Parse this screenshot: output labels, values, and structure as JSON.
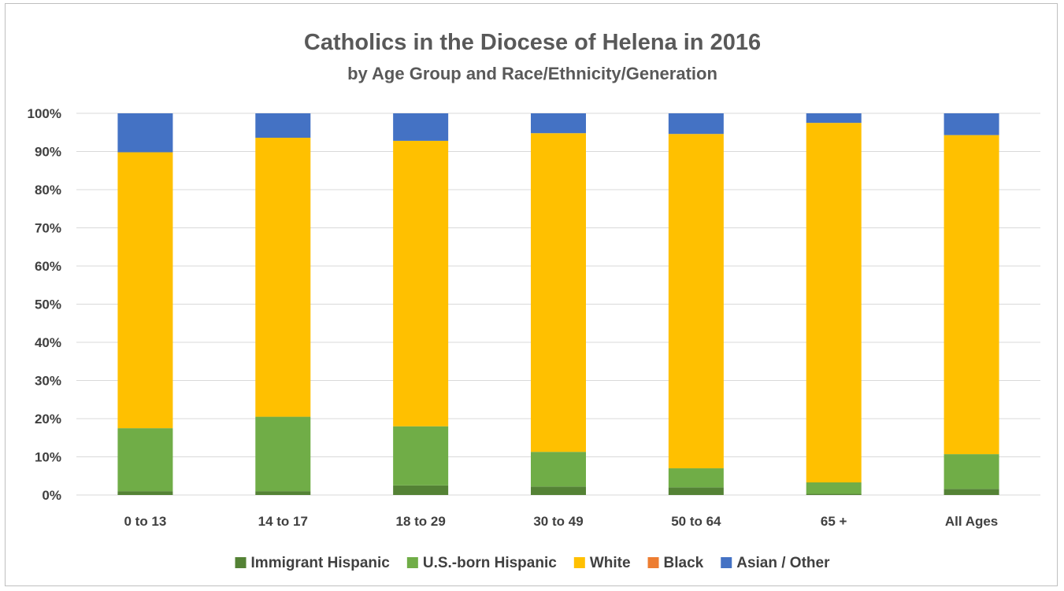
{
  "chart_data": {
    "type": "bar",
    "stacked": true,
    "title": "Catholics in the Diocese of Helena in 2016",
    "subtitle": "by Age Group and Race/Ethnicity/Generation",
    "categories": [
      "0 to 13",
      "14 to 17",
      "18 to 29",
      "30 to 49",
      "50 to 64",
      "65 +",
      "All Ages"
    ],
    "series": [
      {
        "name": "Immigrant Hispanic",
        "color": "#548235",
        "values": [
          1.0,
          1.0,
          2.5,
          2.2,
          2.0,
          0.3,
          1.6
        ]
      },
      {
        "name": "U.S.-born Hispanic",
        "color": "#70ad47",
        "values": [
          16.5,
          19.5,
          15.5,
          9.1,
          5.0,
          3.0,
          9.1
        ]
      },
      {
        "name": "White",
        "color": "#ffc000",
        "values": [
          72.3,
          73.1,
          74.8,
          83.5,
          87.6,
          94.2,
          83.6
        ]
      },
      {
        "name": "Black",
        "color": "#ed7d31",
        "values": [
          0,
          0,
          0,
          0,
          0,
          0,
          0
        ]
      },
      {
        "name": "Asian / Other",
        "color": "#4472c4",
        "values": [
          10.2,
          6.4,
          7.2,
          5.2,
          5.4,
          2.5,
          5.7
        ]
      }
    ],
    "ylim": [
      0,
      100
    ],
    "yticks": [
      "0%",
      "10%",
      "20%",
      "30%",
      "40%",
      "50%",
      "60%",
      "70%",
      "80%",
      "90%",
      "100%"
    ],
    "grid": true,
    "legend": "bottom"
  }
}
